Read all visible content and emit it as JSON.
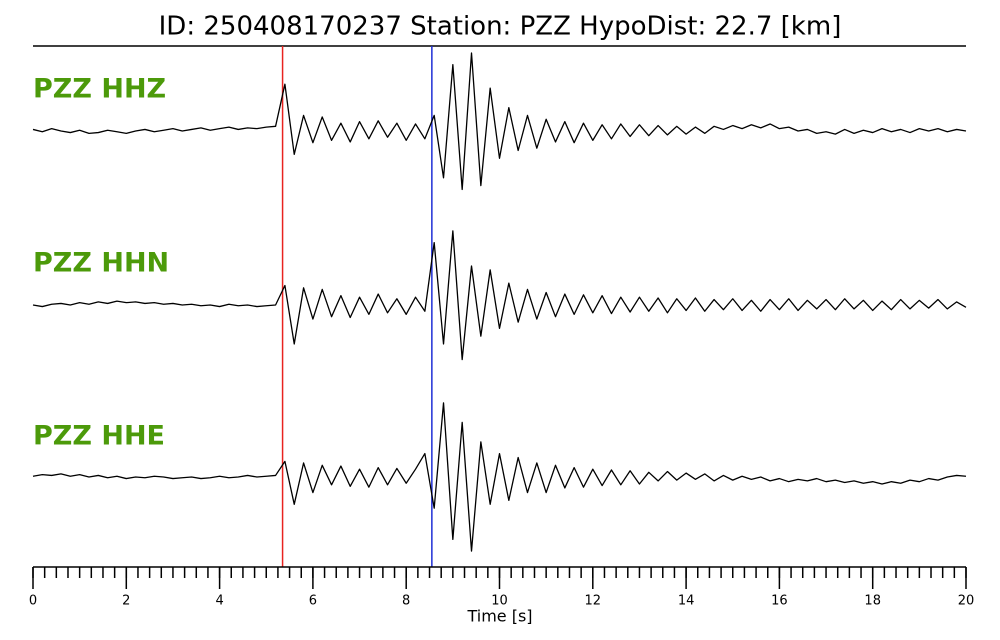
{
  "chart_data": {
    "type": "line",
    "title": "ID: 250408170237   Station: PZZ   HypoDist:    22.7 [km]",
    "xlabel": "Time [s]",
    "xlim": [
      0,
      20
    ],
    "ylim": [
      -1,
      1
    ],
    "xticks": [
      0,
      2,
      4,
      6,
      8,
      10,
      12,
      14,
      16,
      18,
      20
    ],
    "xminorticks": [
      0,
      0.25,
      0.5,
      0.75,
      1,
      1.25,
      1.5,
      1.75,
      2,
      2.25,
      2.5,
      2.75,
      3,
      3.25,
      3.5,
      3.75,
      4,
      4.25,
      4.5,
      4.75,
      5,
      5.25,
      5.5,
      5.75,
      6,
      6.25,
      6.5,
      6.75,
      7,
      7.25,
      7.5,
      7.75,
      8,
      8.25,
      8.5,
      8.75,
      9,
      9.25,
      9.5,
      9.75,
      10,
      10.25,
      10.5,
      10.75,
      11,
      11.25,
      11.5,
      11.75,
      12,
      12.25,
      12.5,
      12.75,
      13,
      13.25,
      13.5,
      13.75,
      14,
      14.25,
      14.5,
      14.75,
      15,
      15.25,
      15.5,
      15.75,
      16,
      16.25,
      16.5,
      16.75,
      17,
      17.25,
      17.5,
      17.75,
      18,
      18.25,
      18.5,
      18.75,
      19,
      19.25,
      19.5,
      19.75,
      20
    ],
    "label_color": "#4c9a0a",
    "picks": [
      {
        "x": 5.35,
        "color": "#e8231f"
      },
      {
        "x": 8.55,
        "color": "#1f2fd6"
      }
    ],
    "x": [
      0,
      0.2,
      0.4,
      0.6,
      0.8,
      1,
      1.2,
      1.4,
      1.6,
      1.8,
      2,
      2.2,
      2.4,
      2.6,
      2.8,
      3,
      3.2,
      3.4,
      3.6,
      3.8,
      4,
      4.2,
      4.4,
      4.6,
      4.8,
      5,
      5.2,
      5.4,
      5.6,
      5.8,
      6,
      6.2,
      6.4,
      6.6,
      6.8,
      7,
      7.2,
      7.4,
      7.6,
      7.8,
      8,
      8.2,
      8.4,
      8.6,
      8.8,
      9,
      9.2,
      9.4,
      9.6,
      9.8,
      10,
      10.2,
      10.4,
      10.6,
      10.8,
      11,
      11.2,
      11.4,
      11.6,
      11.8,
      12,
      12.2,
      12.4,
      12.6,
      12.8,
      13,
      13.2,
      13.4,
      13.6,
      13.8,
      14,
      14.2,
      14.4,
      14.6,
      14.8,
      15,
      15.2,
      15.4,
      15.6,
      15.8,
      16,
      16.2,
      16.4,
      16.6,
      16.8,
      17,
      17.2,
      17.4,
      17.6,
      17.8,
      18,
      18.2,
      18.4,
      18.6,
      18.8,
      19,
      19.2,
      19.4,
      19.6,
      19.8,
      20
    ],
    "series": [
      {
        "name": "PZZ HHZ",
        "color": "#000000",
        "values": [
          0.02,
          -0.01,
          0.03,
          0.0,
          -0.02,
          0.01,
          -0.03,
          -0.02,
          0.01,
          -0.01,
          -0.03,
          0.0,
          0.02,
          -0.01,
          0.01,
          0.03,
          0.0,
          0.02,
          0.04,
          0.01,
          0.03,
          0.05,
          0.02,
          0.04,
          0.03,
          0.05,
          0.06,
          0.6,
          -0.3,
          0.2,
          -0.15,
          0.18,
          -0.12,
          0.1,
          -0.14,
          0.12,
          -0.1,
          0.13,
          -0.08,
          0.1,
          -0.12,
          0.09,
          -0.1,
          0.2,
          -0.6,
          0.85,
          -0.75,
          1.0,
          -0.7,
          0.55,
          -0.35,
          0.3,
          -0.25,
          0.2,
          -0.22,
          0.15,
          -0.14,
          0.12,
          -0.15,
          0.1,
          -0.12,
          0.08,
          -0.1,
          0.09,
          -0.07,
          0.08,
          -0.06,
          0.07,
          -0.05,
          0.06,
          -0.04,
          0.05,
          -0.03,
          0.06,
          0.02,
          0.07,
          0.03,
          0.08,
          0.04,
          0.09,
          0.03,
          0.05,
          0.0,
          0.02,
          -0.03,
          -0.01,
          -0.04,
          0.02,
          -0.03,
          0.01,
          -0.02,
          0.03,
          -0.01,
          0.02,
          -0.02,
          0.03,
          0.0,
          0.03,
          -0.01,
          0.02,
          0.0
        ]
      },
      {
        "name": "PZZ HHN",
        "color": "#000000",
        "values": [
          0.0,
          -0.02,
          0.01,
          0.02,
          0.0,
          0.03,
          0.01,
          0.04,
          0.02,
          0.05,
          0.03,
          0.04,
          0.02,
          0.03,
          0.01,
          0.02,
          0.0,
          0.01,
          -0.01,
          0.0,
          -0.02,
          0.01,
          -0.01,
          0.0,
          -0.02,
          -0.01,
          0.0,
          0.25,
          -0.5,
          0.22,
          -0.18,
          0.2,
          -0.15,
          0.12,
          -0.16,
          0.1,
          -0.12,
          0.14,
          -0.1,
          0.08,
          -0.12,
          0.1,
          -0.08,
          0.8,
          -0.5,
          0.95,
          -0.7,
          0.5,
          -0.4,
          0.45,
          -0.3,
          0.28,
          -0.22,
          0.2,
          -0.18,
          0.16,
          -0.15,
          0.14,
          -0.12,
          0.13,
          -0.1,
          0.12,
          -0.11,
          0.1,
          -0.09,
          0.1,
          -0.08,
          0.09,
          -0.1,
          0.08,
          -0.07,
          0.09,
          -0.08,
          0.07,
          -0.06,
          0.08,
          -0.07,
          0.06,
          -0.08,
          0.07,
          -0.06,
          0.08,
          -0.07,
          0.06,
          -0.05,
          0.07,
          -0.06,
          0.08,
          -0.05,
          0.06,
          -0.07,
          0.05,
          -0.06,
          0.07,
          -0.05,
          0.06,
          -0.04,
          0.07,
          -0.05,
          0.04,
          -0.03
        ]
      },
      {
        "name": "PZZ HHE",
        "color": "#000000",
        "values": [
          0.01,
          0.03,
          0.02,
          0.04,
          0.01,
          0.03,
          0.0,
          0.02,
          -0.01,
          0.01,
          -0.02,
          0.0,
          -0.01,
          0.01,
          0.0,
          -0.02,
          -0.01,
          0.0,
          -0.02,
          -0.01,
          0.01,
          -0.01,
          0.0,
          0.02,
          0.0,
          0.01,
          0.02,
          0.2,
          -0.35,
          0.18,
          -0.2,
          0.15,
          -0.1,
          0.14,
          -0.12,
          0.1,
          -0.13,
          0.12,
          -0.1,
          0.11,
          -0.08,
          0.1,
          0.3,
          -0.4,
          0.95,
          -0.8,
          0.7,
          -0.95,
          0.45,
          -0.35,
          0.3,
          -0.3,
          0.25,
          -0.2,
          0.18,
          -0.2,
          0.15,
          -0.14,
          0.12,
          -0.13,
          0.1,
          -0.11,
          0.09,
          -0.1,
          0.08,
          -0.09,
          0.06,
          -0.05,
          0.07,
          -0.04,
          0.05,
          -0.03,
          0.04,
          -0.05,
          0.02,
          -0.04,
          0.01,
          -0.03,
          0.0,
          -0.05,
          -0.02,
          -0.06,
          -0.03,
          -0.05,
          -0.02,
          -0.06,
          -0.04,
          -0.07,
          -0.05,
          -0.08,
          -0.06,
          -0.09,
          -0.06,
          -0.08,
          -0.04,
          -0.06,
          -0.02,
          -0.04,
          0.0,
          0.02,
          0.01
        ]
      }
    ]
  }
}
